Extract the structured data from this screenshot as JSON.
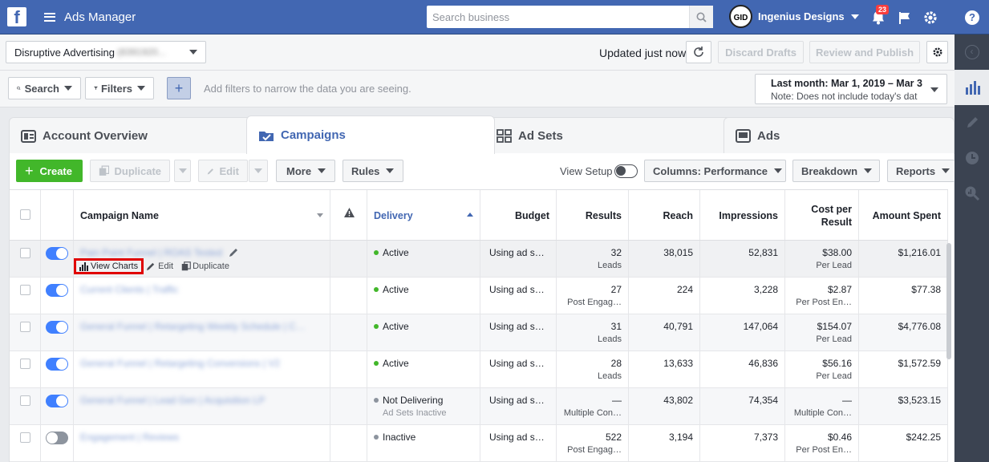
{
  "app": {
    "title": "Ads Manager",
    "logo": "f"
  },
  "search": {
    "placeholder": "Search business"
  },
  "account": {
    "name": "Ingenius Designs",
    "logo_text": "GID"
  },
  "notifications": {
    "count": "23"
  },
  "bar1": {
    "ad_account": "Disruptive Advertising",
    "ad_account_id": "(8391920...",
    "updated": "Updated just now",
    "discard": "Discard Drafts",
    "review": "Review and Publish"
  },
  "bar2": {
    "search_btn": "Search",
    "filters_btn": "Filters",
    "filter_hint": "Add filters to narrow the data you are seeing.",
    "date_main": "Last month: Mar 1, 2019 – Mar 3",
    "date_note": "Note: Does not include today's dat"
  },
  "tabs": [
    {
      "label": "Account Overview",
      "icon": "dashboard-icon"
    },
    {
      "label": "Campaigns",
      "icon": "folder-check-icon"
    },
    {
      "label": "Ad Sets",
      "icon": "grid-icon"
    },
    {
      "label": "Ads",
      "icon": "ad-icon"
    }
  ],
  "toolbar": {
    "create": "Create",
    "duplicate": "Duplicate",
    "edit": "Edit",
    "more": "More",
    "rules": "Rules",
    "view_setup": "View Setup",
    "columns": "Columns: Performance",
    "breakdown": "Breakdown",
    "reports": "Reports"
  },
  "columns": {
    "name": "Campaign Name",
    "delivery": "Delivery",
    "budget": "Budget",
    "results": "Results",
    "reach": "Reach",
    "impressions": "Impressions",
    "cpr": "Cost per Result",
    "spent": "Amount Spent"
  },
  "row_actions": {
    "view_charts": "View Charts",
    "edit": "Edit",
    "duplicate": "Duplicate"
  },
  "rows": [
    {
      "name": "Pain Point Funnel | ROAS Tested",
      "on": true,
      "delivery": "Active",
      "delivery_sub": "",
      "status_color": "#42b72a",
      "budget": "Using ad se…",
      "results": "32",
      "results_sub": "Leads",
      "reach": "38,015",
      "impressions": "52,831",
      "cpr": "$38.00",
      "cpr_sub": "Per Lead",
      "spent": "$1,216.01"
    },
    {
      "name": "Current Clients | Traffic",
      "on": true,
      "delivery": "Active",
      "delivery_sub": "",
      "status_color": "#42b72a",
      "budget": "Using ad se…",
      "results": "27",
      "results_sub": "Post Engag…",
      "reach": "224",
      "impressions": "3,228",
      "cpr": "$2.87",
      "cpr_sub": "Per Post En…",
      "spent": "$77.38"
    },
    {
      "name": "General Funnel | Retargeting Weekly Schedule | C…",
      "on": true,
      "delivery": "Active",
      "delivery_sub": "",
      "status_color": "#42b72a",
      "budget": "Using ad se…",
      "results": "31",
      "results_sub": "Leads",
      "reach": "40,791",
      "impressions": "147,064",
      "cpr": "$154.07",
      "cpr_sub": "Per Lead",
      "spent": "$4,776.08"
    },
    {
      "name": "General Funnel | Retargeting Conversions | V2",
      "on": true,
      "delivery": "Active",
      "delivery_sub": "",
      "status_color": "#42b72a",
      "budget": "Using ad se…",
      "results": "28",
      "results_sub": "Leads",
      "reach": "13,633",
      "impressions": "46,836",
      "cpr": "$56.16",
      "cpr_sub": "Per Lead",
      "spent": "$1,572.59"
    },
    {
      "name": "General Funnel | Lead Gen | Acquisition LP",
      "on": true,
      "delivery": "Not Delivering",
      "delivery_sub": "Ad Sets Inactive",
      "status_color": "#8d949e",
      "budget": "Using ad se…",
      "results": "—",
      "results_sub": "Multiple Con…",
      "reach": "43,802",
      "impressions": "74,354",
      "cpr": "—",
      "cpr_sub": "Multiple Con…",
      "spent": "$3,523.15"
    },
    {
      "name": "Engagement | Reviews",
      "on": false,
      "delivery": "Inactive",
      "delivery_sub": "",
      "status_color": "#8d949e",
      "budget": "Using ad se…",
      "results": "522",
      "results_sub": "Post Engag…",
      "reach": "3,194",
      "impressions": "7,373",
      "cpr": "$0.46",
      "cpr_sub": "Per Post En…",
      "spent": "$242.25"
    }
  ],
  "colors": {
    "brand": "#4267b2",
    "create": "#42b72a",
    "highlight": "#e00000"
  }
}
